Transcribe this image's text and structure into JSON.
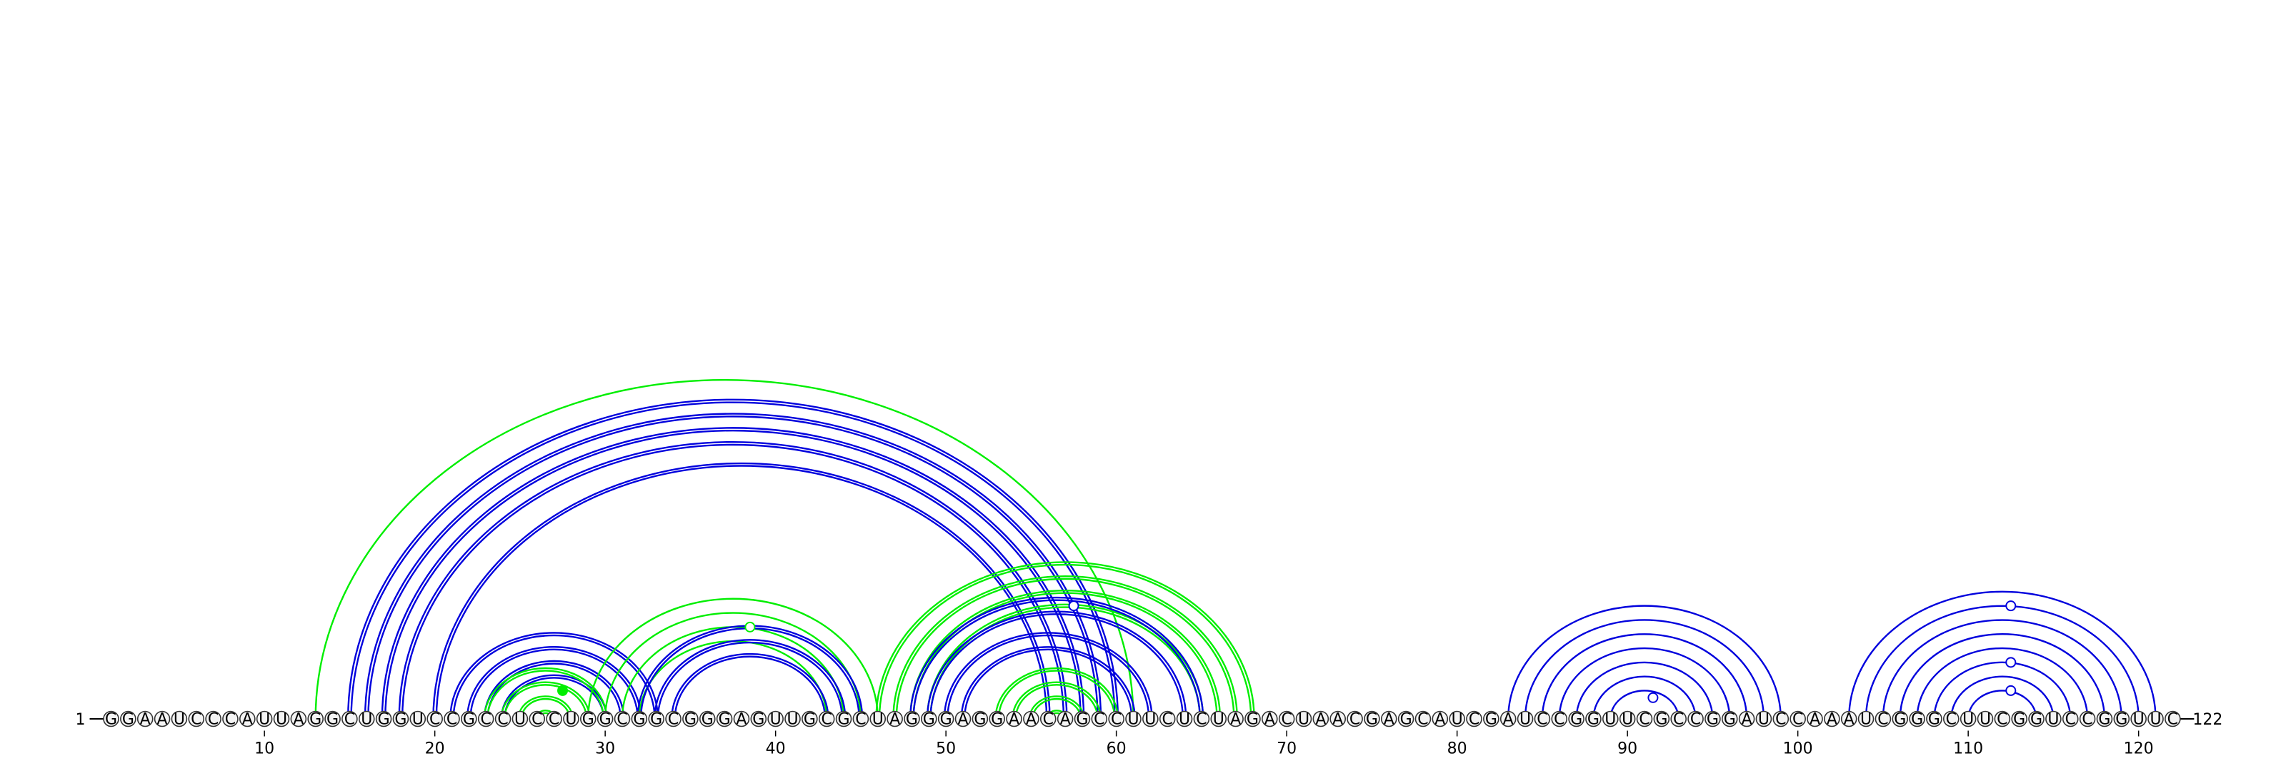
{
  "sequence": "GGAAUCCCAUUAGGCUGGUCCGCCUCCUGGCGGCGGGAGUUGCGCUAGGGAGGAACAGCCUUCUCUAGACUAACGAGCAUCGAUCCGGUUCGCCGGAUCCAAAUCGGGCUUCGGUCCGGUUC",
  "start_label": "1",
  "end_label": "122",
  "tick_positions": [
    10,
    20,
    30,
    40,
    50,
    60,
    70,
    80,
    90,
    100,
    110,
    120
  ],
  "colors": {
    "blue": "#0000dd",
    "green": "#00ee00",
    "circle_stroke": "#333333",
    "circle_fill": "#f4f4f4"
  },
  "helices": [
    {
      "name": "outer-green-13-61",
      "color": "green",
      "double": false,
      "pairs": [
        [
          13,
          61
        ]
      ]
    },
    {
      "name": "long-blue-helix",
      "color": "blue",
      "double": true,
      "pairs": [
        [
          15,
          60
        ],
        [
          16,
          59
        ],
        [
          17,
          58
        ],
        [
          18,
          57
        ],
        [
          20,
          56
        ]
      ]
    },
    {
      "name": "blue-helix-21-33",
      "color": "blue",
      "double": true,
      "pairs": [
        [
          21,
          33
        ],
        [
          22,
          32
        ],
        [
          23,
          31
        ],
        [
          24,
          30
        ]
      ]
    },
    {
      "name": "green-helix-23-30",
      "color": "green",
      "double": true,
      "pairs": [
        [
          23,
          30
        ],
        [
          24,
          29
        ],
        [
          25,
          28
        ],
        [
          26,
          27
        ]
      ]
    },
    {
      "name": "green-helix-29-46",
      "color": "green",
      "double": false,
      "pairs": [
        [
          29,
          46
        ],
        [
          30,
          45
        ],
        [
          31,
          44
        ],
        [
          32,
          43
        ]
      ]
    },
    {
      "name": "blue-helix-32-45",
      "color": "blue",
      "double": true,
      "pairs": [
        [
          32,
          45
        ],
        [
          33,
          44
        ],
        [
          34,
          43
        ]
      ]
    },
    {
      "name": "green-helix-46-68",
      "color": "green",
      "double": true,
      "pairs": [
        [
          46,
          68
        ],
        [
          47,
          67
        ],
        [
          48,
          66
        ],
        [
          49,
          65
        ]
      ]
    },
    {
      "name": "blue-helix-48-65",
      "color": "blue",
      "double": true,
      "pairs": [
        [
          48,
          65
        ],
        [
          49,
          64
        ],
        [
          50,
          62
        ],
        [
          51,
          61
        ]
      ]
    },
    {
      "name": "green-helix-53-60",
      "color": "green",
      "double": true,
      "pairs": [
        [
          53,
          60
        ],
        [
          54,
          59
        ],
        [
          55,
          58
        ],
        [
          56,
          57
        ]
      ]
    },
    {
      "name": "blue-helix-83-99",
      "color": "blue",
      "double": false,
      "pairs": [
        [
          83,
          99
        ],
        [
          84,
          98
        ],
        [
          85,
          97
        ],
        [
          86,
          96
        ],
        [
          87,
          95
        ],
        [
          88,
          94
        ],
        [
          89,
          93
        ]
      ]
    },
    {
      "name": "blue-helix-103-121",
      "color": "blue",
      "double": false,
      "pairs": [
        [
          103,
          121
        ],
        [
          104,
          120
        ],
        [
          105,
          119
        ],
        [
          106,
          118
        ],
        [
          107,
          117
        ],
        [
          108,
          116
        ],
        [
          109,
          115
        ],
        [
          110,
          114
        ]
      ]
    }
  ],
  "markers": [
    {
      "pos": 27,
      "color": "green",
      "filled": true
    },
    {
      "pos": 38,
      "color": "green",
      "filled": false
    },
    {
      "pos": 57,
      "color": "blue",
      "filled": false
    },
    {
      "pos": 91,
      "color": "blue",
      "filled": false
    },
    {
      "pos": 112,
      "color": "blue",
      "filled": false
    },
    {
      "pos": 112,
      "color": "blue",
      "filled": false,
      "level": 2
    },
    {
      "pos": 112,
      "color": "blue",
      "filled": false,
      "level": 3
    }
  ]
}
